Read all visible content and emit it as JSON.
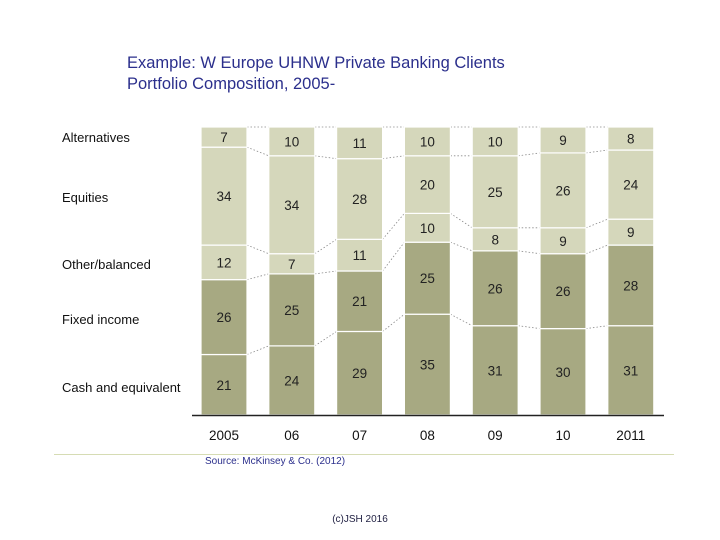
{
  "title": {
    "line1": "Example: W Europe UHNW Private Banking Clients",
    "line2": "Portfolio Composition, 2005-"
  },
  "source": "Source: McKinsey & Co. (2012)",
  "copyright": "(c)JSH 2016",
  "colors": {
    "title": "#2b2f8c",
    "dark_segment": "#a7a982",
    "light_segment": "#d5d7bb",
    "connector": "#8a8a8a",
    "baseline": "#222222"
  },
  "chart_data": {
    "type": "bar",
    "stacked": true,
    "categories": [
      "2005",
      "06",
      "07",
      "08",
      "09",
      "10",
      "2011"
    ],
    "series": [
      {
        "name": "Cash and equivalent",
        "values": [
          21,
          24,
          29,
          35,
          31,
          30,
          31
        ],
        "shade": "dark"
      },
      {
        "name": "Fixed income",
        "values": [
          26,
          25,
          21,
          25,
          26,
          26,
          28
        ],
        "shade": "dark"
      },
      {
        "name": "Other/balanced",
        "values": [
          12,
          7,
          11,
          10,
          8,
          9,
          9
        ],
        "shade": "light"
      },
      {
        "name": "Equities",
        "values": [
          34,
          34,
          28,
          20,
          25,
          26,
          24
        ],
        "shade": "light"
      },
      {
        "name": "Alternatives",
        "values": [
          7,
          10,
          11,
          10,
          10,
          9,
          8
        ],
        "shade": "light"
      }
    ],
    "row_labels_top_to_bottom": [
      "Alternatives",
      "Equities",
      "Other/balanced",
      "Fixed income",
      "Cash and equivalent"
    ],
    "ylim": [
      0,
      100
    ],
    "grid": false,
    "data_labels": true,
    "connector_lines": "dotted"
  }
}
